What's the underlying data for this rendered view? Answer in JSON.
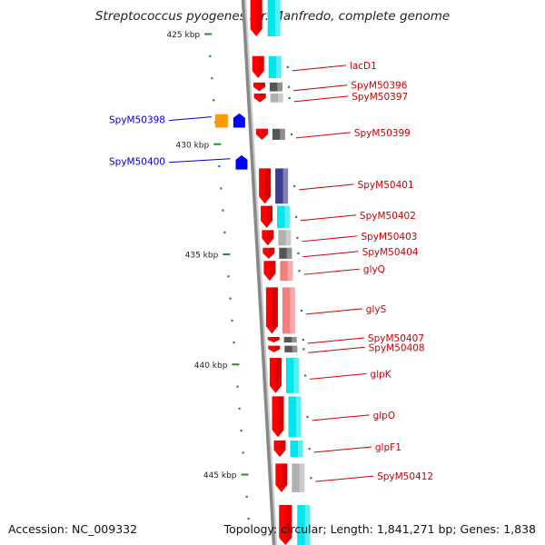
{
  "title": "Streptococcus pyogenes str. Manfredo, complete genome",
  "footer": {
    "accession": "Accession: NC_009332",
    "summary": "Topology: circular; Length: 1,841,271 bp; Genes: 1,838"
  },
  "kbp_ticks": [
    {
      "label": "425 kbp",
      "kbp": 425
    },
    {
      "label": "430 kbp",
      "kbp": 430
    },
    {
      "label": "435 kbp",
      "kbp": 435
    },
    {
      "label": "440 kbp",
      "kbp": 440
    },
    {
      "label": "445 kbp",
      "kbp": 445
    }
  ],
  "colors": {
    "forward_gene": "#ff0000",
    "reverse_gene": "#0000ff",
    "forward_label": "#cc0000",
    "reverse_label": "#0000cc",
    "backbone": "#888888",
    "tick": "#2a8a2a",
    "cog_cyan": "#00e5ee",
    "cog_grey": "#b0b0b0",
    "cog_dark": "#555555",
    "cog_navy": "#3c3c8c",
    "cog_pink": "#f08080",
    "cog_orange": "#ff9900"
  },
  "forward_genes": [
    {
      "label": "lacD1",
      "start_kbp": 426.0,
      "end_kbp": 427.0,
      "cog": "cog_cyan"
    },
    {
      "label": "SpyM50396",
      "start_kbp": 427.2,
      "end_kbp": 427.6,
      "cog": "cog_dark"
    },
    {
      "label": "SpyM50397",
      "start_kbp": 427.7,
      "end_kbp": 428.1,
      "cog": "cog_grey"
    },
    {
      "label": "SpyM50399",
      "start_kbp": 429.3,
      "end_kbp": 429.8,
      "cog": "cog_dark"
    },
    {
      "label": "SpyM50401",
      "start_kbp": 431.1,
      "end_kbp": 432.7,
      "cog": "cog_navy"
    },
    {
      "label": "SpyM50402",
      "start_kbp": 432.8,
      "end_kbp": 433.8,
      "cog": "cog_cyan"
    },
    {
      "label": "SpyM50403",
      "start_kbp": 433.9,
      "end_kbp": 434.6,
      "cog": "cog_grey"
    },
    {
      "label": "SpyM50404",
      "start_kbp": 434.7,
      "end_kbp": 435.2,
      "cog": "cog_dark"
    },
    {
      "label": "glyQ",
      "start_kbp": 435.3,
      "end_kbp": 436.2,
      "cog": "cog_pink"
    },
    {
      "label": "glyS",
      "start_kbp": 436.5,
      "end_kbp": 438.6,
      "cog": "cog_pink"
    },
    {
      "label": "SpyM50407",
      "start_kbp": 438.75,
      "end_kbp": 439.0,
      "cog": "cog_dark"
    },
    {
      "label": "SpyM50408",
      "start_kbp": 439.15,
      "end_kbp": 439.45,
      "cog": "cog_dark"
    },
    {
      "label": "glpK",
      "start_kbp": 439.7,
      "end_kbp": 441.3,
      "cog": "cog_cyan"
    },
    {
      "label": "glpO",
      "start_kbp": 441.45,
      "end_kbp": 443.3,
      "cog": "cog_cyan"
    },
    {
      "label": "glpF1",
      "start_kbp": 443.45,
      "end_kbp": 444.2,
      "cog": "cog_cyan"
    },
    {
      "label": "SpyM50412",
      "start_kbp": 444.5,
      "end_kbp": 445.8,
      "cog": "cog_grey"
    }
  ],
  "reverse_genes": [
    {
      "label": "SpyM50398",
      "start_kbp": 428.6,
      "end_kbp": 429.0,
      "cog": "cog_orange"
    },
    {
      "label": "SpyM50400",
      "start_kbp": 430.5,
      "end_kbp": 430.9,
      "cog": ""
    }
  ]
}
